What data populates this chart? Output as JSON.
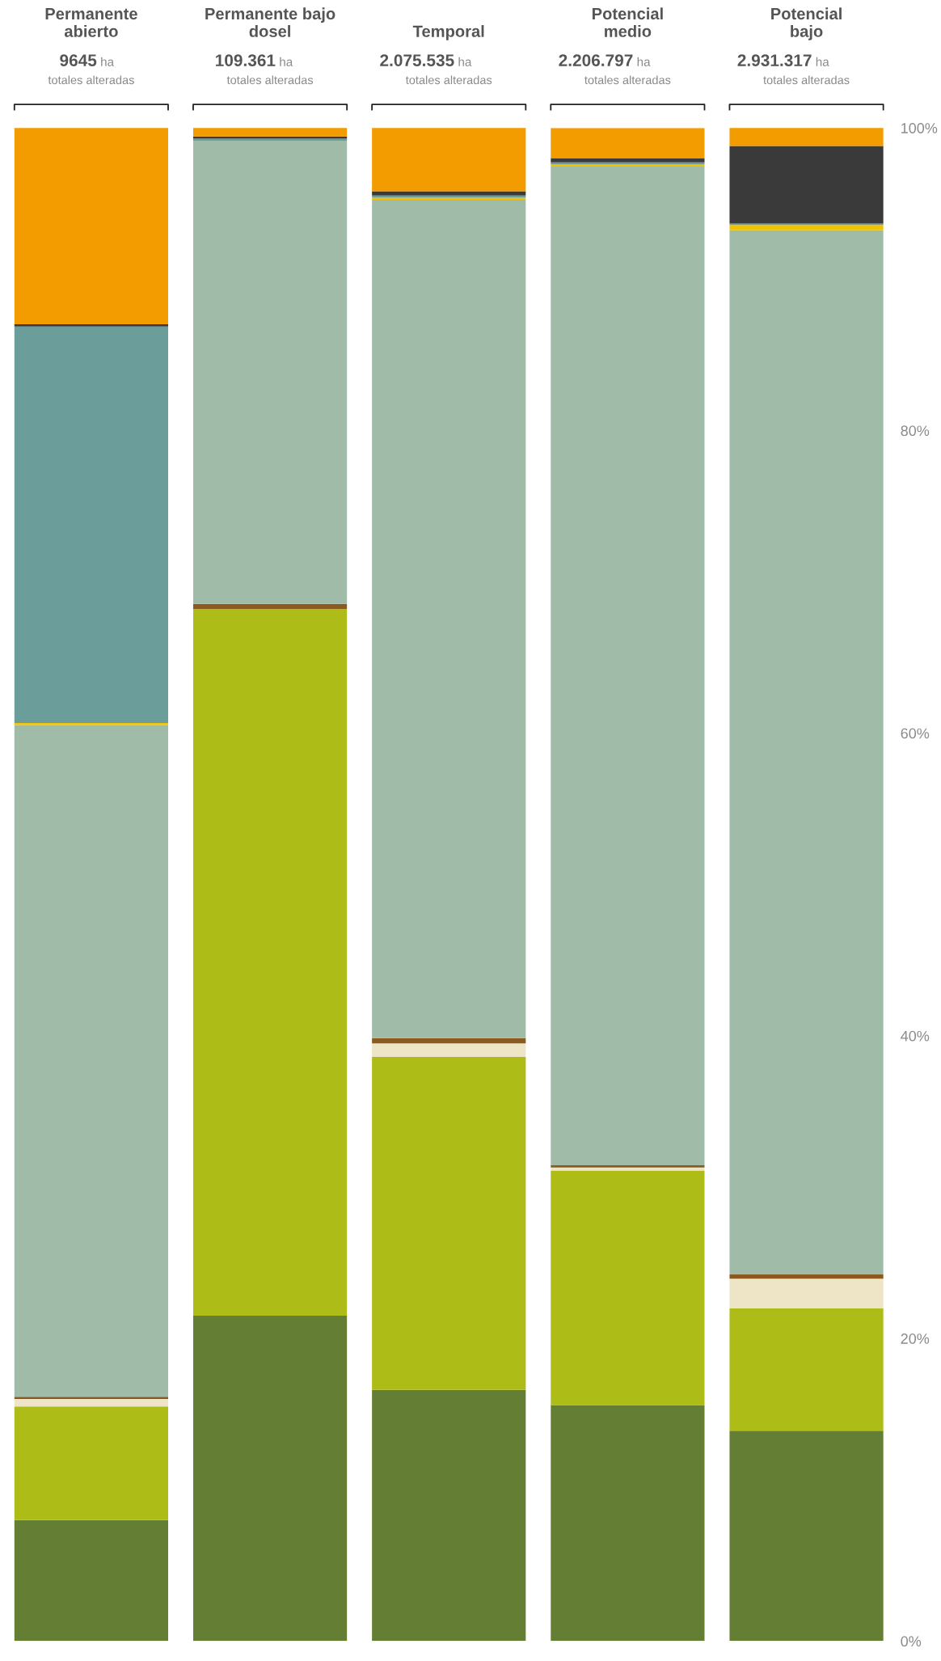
{
  "chart_data": {
    "type": "bar",
    "stacked": true,
    "categories": [
      "Permanente\nabierto",
      "Permanente bajo\ndosel",
      "Temporal",
      "Potencial\nmedio",
      "Potencial\nbajo"
    ],
    "annotations": [
      "9645 ha\ntotales alteradas",
      "109.361 ha\ntotales alteradas",
      "2.075.535 ha\ntotales alteradas",
      "2.206.797 ha\ntotales alteradas",
      "2.931.317 ha\ntotales alteradas"
    ],
    "series": [
      {
        "color": "#647f33",
        "values": [
          8.0,
          21.5,
          16.6,
          15.6,
          13.9
        ]
      },
      {
        "color": "#adbc16",
        "values": [
          7.5,
          46.7,
          22.0,
          15.5,
          8.1
        ]
      },
      {
        "color": "#ede5c5",
        "values": [
          0.5,
          0,
          0.9,
          0.2,
          1.95
        ]
      },
      {
        "color": "#8b5a1e",
        "values": [
          0.14,
          0.35,
          0.35,
          0.14,
          0.28
        ]
      },
      {
        "color": "#a1bba9",
        "values": [
          44.4,
          30.6,
          55.4,
          66.0,
          69.0
        ]
      },
      {
        "color": "#f0c300",
        "values": [
          0.14,
          0,
          0.14,
          0.14,
          0.35
        ]
      },
      {
        "color": "#6b9e9b",
        "values": [
          26.2,
          0.14,
          0.14,
          0.14,
          0.1
        ]
      },
      {
        "color": "#3a3a3a",
        "values": [
          0.14,
          0.14,
          0.28,
          0.28,
          5.13
        ]
      },
      {
        "color": "#f39c00",
        "values": [
          13.0,
          0.7,
          4.2,
          2.0,
          1.2
        ]
      }
    ],
    "ylim": [
      0,
      100
    ],
    "yticks": [
      {
        "value": 0,
        "label": "0%"
      },
      {
        "value": 20,
        "label": "20%"
      },
      {
        "value": 40,
        "label": "40%"
      },
      {
        "value": 60,
        "label": "60%"
      },
      {
        "value": 80,
        "label": "80%"
      },
      {
        "value": 100,
        "label": "100%"
      }
    ],
    "grid": false,
    "legend": false
  }
}
